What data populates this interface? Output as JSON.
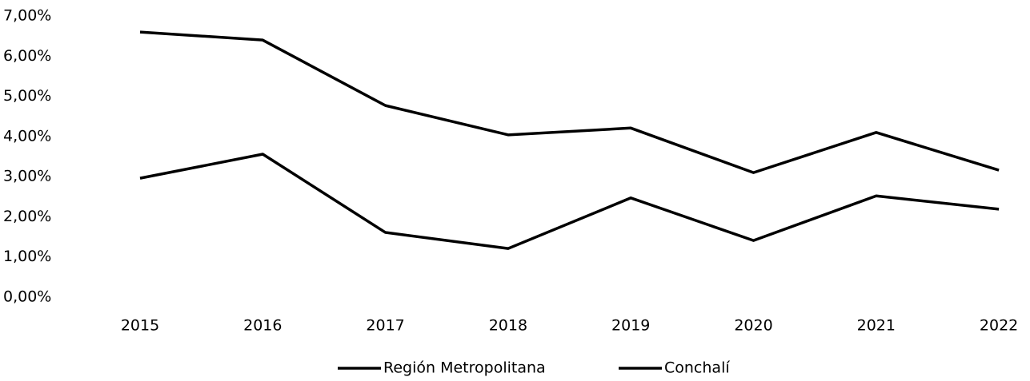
{
  "chart_data": {
    "type": "line",
    "categories": [
      "2015",
      "2016",
      "2017",
      "2018",
      "2019",
      "2020",
      "2021",
      "2022"
    ],
    "series": [
      {
        "name": "Región Metropolitana",
        "color": "#000000",
        "values": [
          6.6,
          6.4,
          4.77,
          4.04,
          4.21,
          3.1,
          4.1,
          3.16
        ]
      },
      {
        "name": "Conchalí",
        "color": "#000000",
        "values": [
          2.96,
          3.56,
          1.61,
          1.21,
          2.47,
          1.41,
          2.52,
          2.19
        ]
      }
    ],
    "ylim": [
      0,
      7
    ],
    "yticks": [
      {
        "value": 0,
        "label": "0,00%"
      },
      {
        "value": 1,
        "label": "1,00%"
      },
      {
        "value": 2,
        "label": "2,00%"
      },
      {
        "value": 3,
        "label": "3,00%"
      },
      {
        "value": 4,
        "label": "4,00%"
      },
      {
        "value": 5,
        "label": "5,00%"
      },
      {
        "value": 6,
        "label": "6,00%"
      },
      {
        "value": 7,
        "label": "7,00%"
      }
    ],
    "grid": false,
    "legend": "bottom"
  }
}
